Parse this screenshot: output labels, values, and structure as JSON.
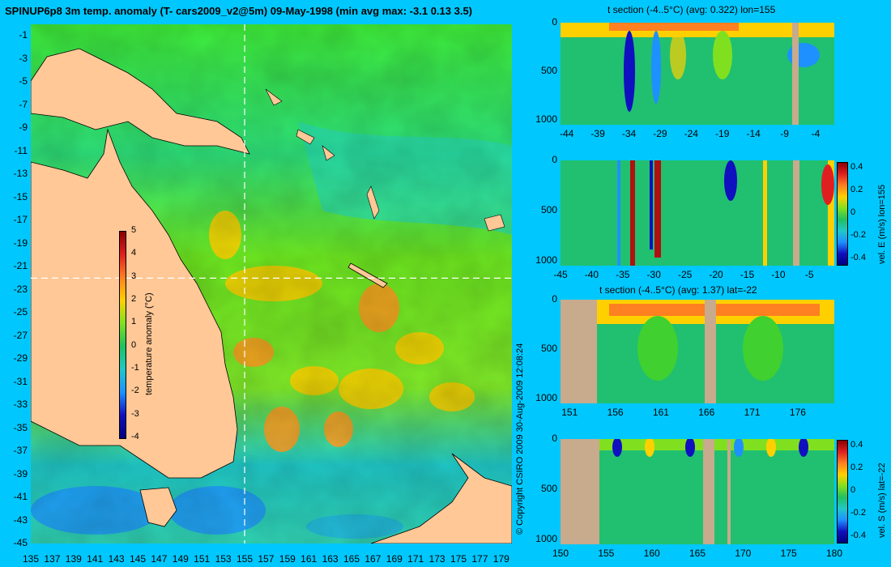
{
  "title": "SPINUP6p8 3m temp. anomaly (T- cars2009_v2@5m) 09-May-1998 (min avg max: -3.1 0.13 3.5)",
  "copyright": "© Copyright CSIRO 2009   30-Aug-2009 12:08:24",
  "colors": {
    "background": "#00c8ff",
    "land": "#ffc896",
    "section_land": "#c8aa8c"
  },
  "chart_data": [
    {
      "type": "heatmap",
      "name": "map",
      "title": "SPINUP6p8 3m temp. anomaly (T- cars2009_v2@5m) 09-May-1998 (min avg max: -3.1 0.13 3.5)",
      "x_ticks": [
        "135",
        "137",
        "139",
        "141",
        "143",
        "145",
        "147",
        "149",
        "151",
        "153",
        "155",
        "157",
        "159",
        "161",
        "163",
        "165",
        "167",
        "169",
        "171",
        "173",
        "175",
        "177",
        "179"
      ],
      "y_ticks": [
        "-1",
        "-3",
        "-5",
        "-7",
        "-9",
        "-11",
        "-13",
        "-15",
        "-17",
        "-19",
        "-21",
        "-23",
        "-25",
        "-27",
        "-29",
        "-31",
        "-33",
        "-35",
        "-37",
        "-39",
        "-41",
        "-43",
        "-45"
      ],
      "xlim": [
        135,
        180
      ],
      "ylim": [
        -45,
        0
      ],
      "section_lon": 155,
      "section_lat": -22,
      "colorbar": {
        "label": "temperature anomaly (°C)",
        "ticks": [
          "5",
          "4",
          "3",
          "2",
          "1",
          "0",
          "-1",
          "-2",
          "-3",
          "-4"
        ],
        "range": [
          -4,
          5
        ]
      }
    },
    {
      "type": "heatmap",
      "name": "t-section-lon",
      "title": "t section (-4..5°C) (avg: 0.322) lon=155",
      "x_ticks": [
        "-44",
        "-39",
        "-34",
        "-29",
        "-24",
        "-19",
        "-14",
        "-9",
        "-4"
      ],
      "y_ticks": [
        "0",
        "500",
        "1000"
      ],
      "xlim": [
        -45,
        -1
      ],
      "ylim": [
        0,
        1050
      ]
    },
    {
      "type": "heatmap",
      "name": "vel-e-section",
      "x_ticks": [
        "-45",
        "-40",
        "-35",
        "-30",
        "-25",
        "-20",
        "-15",
        "-10",
        "-5"
      ],
      "y_ticks": [
        "0",
        "500",
        "1000"
      ],
      "xlim": [
        -45,
        -1
      ],
      "ylim": [
        0,
        1050
      ],
      "colorbar": {
        "label": "vel. E (m/s) lon=155",
        "ticks": [
          "0.4",
          "0.2",
          "0",
          "-0.2",
          "-0.4"
        ],
        "range": [
          -0.45,
          0.45
        ]
      }
    },
    {
      "type": "heatmap",
      "name": "t-section-lat",
      "title": "t section (-4..5°C) (avg: 1.37) lat=-22",
      "x_ticks": [
        "151",
        "156",
        "161",
        "166",
        "171",
        "176"
      ],
      "y_ticks": [
        "0",
        "500",
        "1000"
      ],
      "xlim": [
        150,
        180
      ],
      "ylim": [
        0,
        1050
      ]
    },
    {
      "type": "heatmap",
      "name": "vel-s-section",
      "x_ticks": [
        "150",
        "155",
        "160",
        "165",
        "170",
        "175",
        "180"
      ],
      "y_ticks": [
        "0",
        "500",
        "1000"
      ],
      "xlim": [
        150,
        180
      ],
      "ylim": [
        0,
        1050
      ],
      "colorbar": {
        "label": "vel. S (m/s) lat=-22",
        "ticks": [
          "0.4",
          "0.2",
          "0",
          "-0.2",
          "-0.4"
        ],
        "range": [
          -0.45,
          0.45
        ]
      }
    }
  ]
}
